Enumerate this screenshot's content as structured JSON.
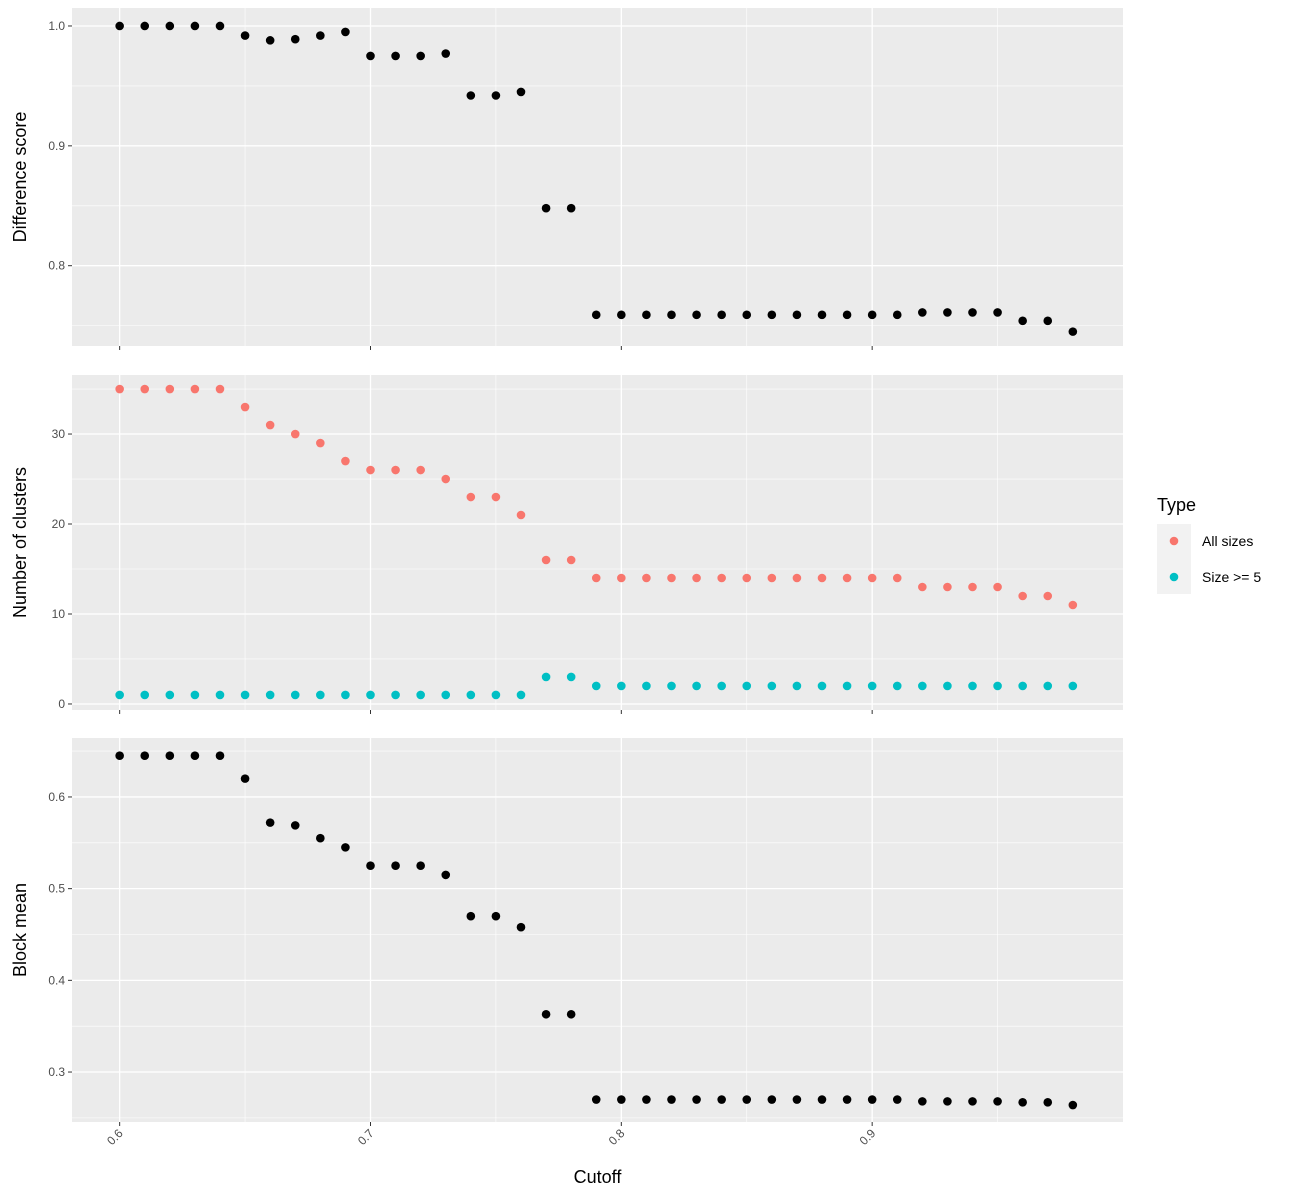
{
  "chart_data": [
    {
      "type": "scatter",
      "ylabel": "Difference score",
      "xlim": [
        0.581,
        1.0
      ],
      "ylim": [
        0.733,
        1.015
      ],
      "yticks": [
        0.8,
        0.9,
        1.0
      ],
      "ytick_labels": [
        "0.8",
        "0.9",
        "1.0"
      ],
      "yminor": [
        0.75,
        0.85,
        0.95
      ],
      "x": [
        0.6,
        0.61,
        0.62,
        0.63,
        0.64,
        0.65,
        0.66,
        0.67,
        0.68,
        0.69,
        0.7,
        0.71,
        0.72,
        0.73,
        0.74,
        0.75,
        0.76,
        0.77,
        0.78,
        0.79,
        0.8,
        0.81,
        0.82,
        0.83,
        0.84,
        0.85,
        0.86,
        0.87,
        0.88,
        0.89,
        0.9,
        0.91,
        0.92,
        0.93,
        0.94,
        0.95,
        0.96,
        0.97,
        0.98
      ],
      "series": [
        {
          "name": "",
          "color": "#000000",
          "values": [
            1.0,
            1.0,
            1.0,
            1.0,
            1.0,
            0.992,
            0.988,
            0.989,
            0.992,
            0.995,
            0.975,
            0.975,
            0.975,
            0.977,
            0.942,
            0.942,
            0.945,
            0.848,
            0.848,
            0.759,
            0.759,
            0.759,
            0.759,
            0.759,
            0.759,
            0.759,
            0.759,
            0.759,
            0.759,
            0.759,
            0.759,
            0.759,
            0.761,
            0.761,
            0.761,
            0.761,
            0.754,
            0.754,
            0.745
          ]
        }
      ]
    },
    {
      "type": "scatter",
      "ylabel": "Number of clusters",
      "xlim": [
        0.581,
        1.0
      ],
      "ylim": [
        -0.67,
        36.56
      ],
      "yticks": [
        0,
        10,
        20,
        30
      ],
      "ytick_labels": [
        "0",
        "10",
        "20",
        "30"
      ],
      "yminor": [
        5,
        15,
        25,
        35
      ],
      "x": [
        0.6,
        0.61,
        0.62,
        0.63,
        0.64,
        0.65,
        0.66,
        0.67,
        0.68,
        0.69,
        0.7,
        0.71,
        0.72,
        0.73,
        0.74,
        0.75,
        0.76,
        0.77,
        0.78,
        0.79,
        0.8,
        0.81,
        0.82,
        0.83,
        0.84,
        0.85,
        0.86,
        0.87,
        0.88,
        0.89,
        0.9,
        0.91,
        0.92,
        0.93,
        0.94,
        0.95,
        0.96,
        0.97,
        0.98
      ],
      "series": [
        {
          "name": "All sizes",
          "color": "#F8766D",
          "values": [
            35,
            35,
            35,
            35,
            35,
            33,
            31,
            30,
            29,
            27,
            26,
            26,
            26,
            25,
            23,
            23,
            21,
            16,
            16,
            14,
            14,
            14,
            14,
            14,
            14,
            14,
            14,
            14,
            14,
            14,
            14,
            14,
            13,
            13,
            13,
            13,
            12,
            12,
            11
          ]
        },
        {
          "name": "Size >= 5",
          "color": "#00BFC4",
          "values": [
            1,
            1,
            1,
            1,
            1,
            1,
            1,
            1,
            1,
            1,
            1,
            1,
            1,
            1,
            1,
            1,
            1,
            3,
            3,
            2,
            2,
            2,
            2,
            2,
            2,
            2,
            2,
            2,
            2,
            2,
            2,
            2,
            2,
            2,
            2,
            2,
            2,
            2,
            2
          ]
        }
      ],
      "legend": {
        "title": "Type",
        "placement": "right"
      }
    },
    {
      "type": "scatter",
      "ylabel": "Block mean",
      "xlabel": "Cutoff",
      "xlim": [
        0.581,
        1.0
      ],
      "ylim": [
        0.2455,
        0.6643
      ],
      "yticks": [
        0.3,
        0.4,
        0.5,
        0.6
      ],
      "ytick_labels": [
        "0.3",
        "0.4",
        "0.5",
        "0.6"
      ],
      "yminor": [
        0.25,
        0.35,
        0.45,
        0.55,
        0.65
      ],
      "xticks": [
        0.6,
        0.7,
        0.8,
        0.9
      ],
      "xtick_labels": [
        "0.6",
        "0.7",
        "0.8",
        "0.9"
      ],
      "x": [
        0.6,
        0.61,
        0.62,
        0.63,
        0.64,
        0.65,
        0.66,
        0.67,
        0.68,
        0.69,
        0.7,
        0.71,
        0.72,
        0.73,
        0.74,
        0.75,
        0.76,
        0.77,
        0.78,
        0.79,
        0.8,
        0.81,
        0.82,
        0.83,
        0.84,
        0.85,
        0.86,
        0.87,
        0.88,
        0.89,
        0.9,
        0.91,
        0.92,
        0.93,
        0.94,
        0.95,
        0.96,
        0.97,
        0.98
      ],
      "series": [
        {
          "name": "",
          "color": "#000000",
          "values": [
            0.645,
            0.645,
            0.645,
            0.645,
            0.645,
            0.62,
            0.572,
            0.569,
            0.555,
            0.545,
            0.525,
            0.525,
            0.525,
            0.515,
            0.47,
            0.47,
            0.458,
            0.363,
            0.363,
            0.27,
            0.27,
            0.27,
            0.27,
            0.27,
            0.27,
            0.27,
            0.27,
            0.27,
            0.27,
            0.27,
            0.27,
            0.27,
            0.268,
            0.268,
            0.268,
            0.268,
            0.267,
            0.267,
            0.264
          ]
        }
      ]
    }
  ]
}
